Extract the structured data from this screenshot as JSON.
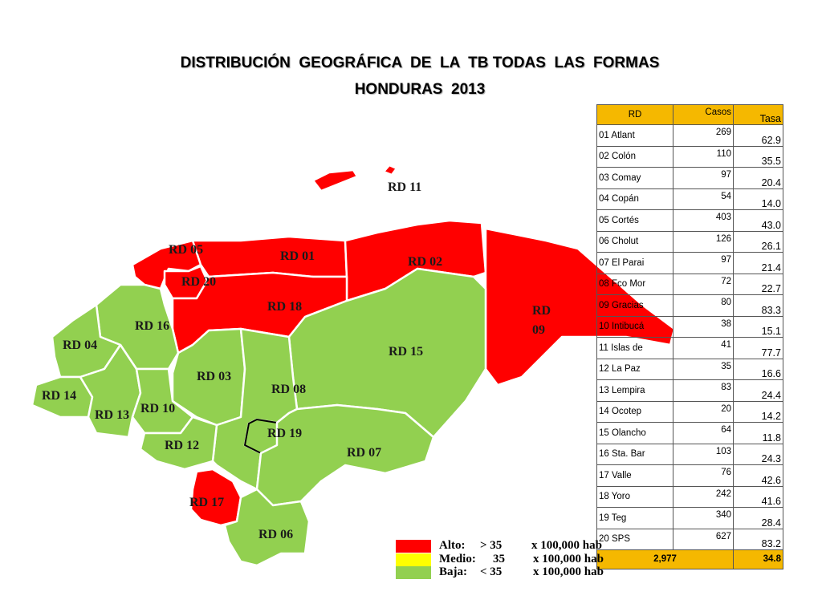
{
  "title": [
    "DISTRIBUCIÓN  GEOGRÁFICA  DE  LA  TB TODAS  LAS  FORMAS",
    "HONDURAS  2013"
  ],
  "map": {
    "regions": [
      {
        "label": "RD 11",
        "color": "#ff0000"
      },
      {
        "label": "RD 05",
        "color": "#ff0000"
      },
      {
        "label": "RD 01",
        "color": "#ff0000"
      },
      {
        "label": "RD 02",
        "color": "#ff0000"
      },
      {
        "label": "RD 20",
        "color": "#ff0000"
      },
      {
        "label": "RD 18",
        "color": "#ff0000"
      },
      {
        "label": "RD 09",
        "color": "#ff0000"
      },
      {
        "label": "RD 16",
        "color": "#92d050"
      },
      {
        "label": "RD 04",
        "color": "#92d050"
      },
      {
        "label": "RD 15",
        "color": "#92d050"
      },
      {
        "label": "RD 03",
        "color": "#92d050"
      },
      {
        "label": "RD 08",
        "color": "#92d050"
      },
      {
        "label": "RD 14",
        "color": "#92d050"
      },
      {
        "label": "RD 10",
        "color": "#92d050"
      },
      {
        "label": "RD 13",
        "color": "#92d050"
      },
      {
        "label": "RD 19",
        "color": "#92d050"
      },
      {
        "label": "RD 12",
        "color": "#92d050"
      },
      {
        "label": "RD 07",
        "color": "#92d050"
      },
      {
        "label": "RD 17",
        "color": "#ff0000"
      },
      {
        "label": "RD 06",
        "color": "#92d050"
      }
    ]
  },
  "table": {
    "header": [
      "RD",
      "Casos",
      "Tasa"
    ],
    "rows": [
      [
        "01 Atlant",
        "269",
        "62.9"
      ],
      [
        "02 Colón",
        "110",
        "35.5"
      ],
      [
        "03 Comay",
        "97",
        "20.4"
      ],
      [
        "04 Copán",
        "54",
        "14.0"
      ],
      [
        "05 Cortés",
        "403",
        "43.0"
      ],
      [
        "06 Cholut",
        "126",
        "26.1"
      ],
      [
        "07 El Parai",
        "97",
        "21.4"
      ],
      [
        "08 Fco Mor",
        "72",
        "22.7"
      ],
      [
        "09 Gracias",
        "80",
        "83.3"
      ],
      [
        "10 Intibucá",
        "38",
        "15.1"
      ],
      [
        "11 Islas de",
        "41",
        "77.7"
      ],
      [
        "12 La Paz",
        "35",
        "16.6"
      ],
      [
        "13 Lempira",
        "83",
        "24.4"
      ],
      [
        "14 Ocotep",
        "20",
        "14.2"
      ],
      [
        "15 Olancho",
        "64",
        "11.8"
      ],
      [
        "16 Sta. Bar",
        "103",
        "24.3"
      ],
      [
        "17 Valle",
        "76",
        "42.6"
      ],
      [
        "18 Yoro",
        "242",
        "41.6"
      ],
      [
        "19 Teg",
        "340",
        "28.4"
      ],
      [
        "20 SPS",
        "627",
        "83.2"
      ]
    ],
    "total": [
      "2,977",
      "34.8"
    ]
  },
  "legend": [
    {
      "label": "Alto:",
      "threshold": "> 35",
      "unit": "x 100,000 hab",
      "color": "#ff0000"
    },
    {
      "label": "Medio:",
      "threshold": "35",
      "unit": "x 100,000 hab",
      "color": "#ffff00"
    },
    {
      "label": "Baja:",
      "threshold": "< 35",
      "unit": "x 100,000 hab",
      "color": "#92d050"
    }
  ]
}
